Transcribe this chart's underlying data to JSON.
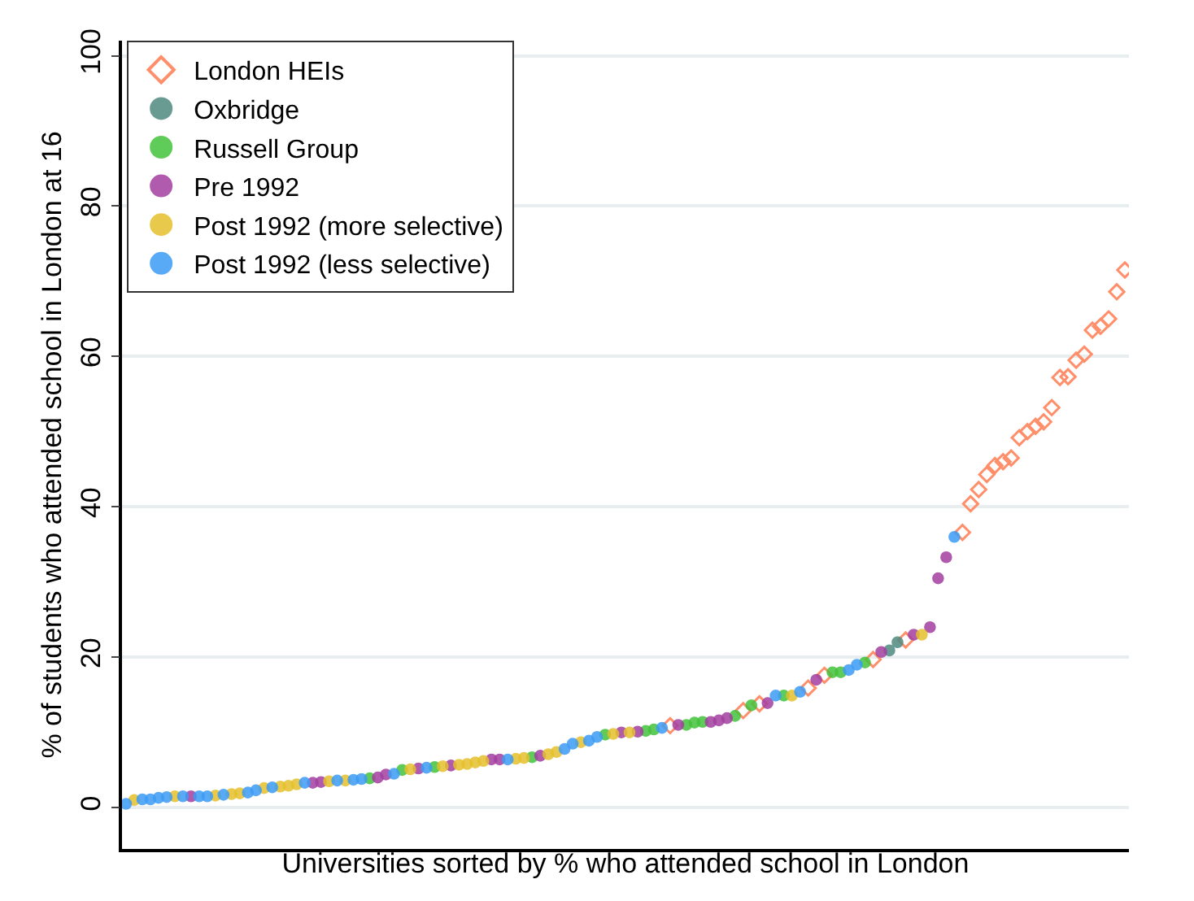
{
  "chart_data": {
    "type": "scatter",
    "xlabel": "Universities sorted by % who attended school in London",
    "ylabel": "% of students who attended school in London at 16",
    "categories": [
      null,
      null,
      null,
      null,
      null,
      null,
      null,
      null,
      null,
      null,
      null,
      null,
      null,
      null,
      null,
      null,
      null,
      null,
      null,
      null,
      null,
      null,
      null,
      null,
      null,
      null,
      null,
      null,
      null,
      null,
      null,
      null,
      null,
      null,
      null,
      null,
      null,
      null,
      null,
      null,
      null,
      null,
      null,
      null,
      null,
      null,
      null,
      null,
      null,
      null,
      null,
      null,
      null,
      null,
      null,
      null,
      null,
      null,
      null,
      null,
      null,
      null,
      null,
      null,
      null,
      null,
      null,
      null,
      null,
      null,
      null,
      null,
      null,
      null,
      null,
      null,
      null,
      null,
      null,
      null,
      null,
      null,
      null,
      null,
      null,
      null,
      null,
      null,
      null,
      null,
      null,
      null,
      null,
      null,
      null,
      null,
      null,
      null,
      null,
      null,
      null,
      null,
      null,
      null,
      null,
      null,
      null,
      null,
      null,
      null,
      null,
      null,
      null,
      null,
      null,
      null,
      null,
      null,
      null,
      null,
      null,
      null,
      null,
      null
    ],
    "series": [
      {
        "name": "London HEIs",
        "color": "#ff8f6b",
        "marker": "diamond",
        "values": [
          null,
          null,
          null,
          null,
          null,
          null,
          null,
          null,
          null,
          null,
          null,
          null,
          null,
          null,
          null,
          null,
          null,
          null,
          null,
          null,
          null,
          null,
          null,
          null,
          null,
          null,
          null,
          null,
          null,
          null,
          null,
          null,
          null,
          null,
          null,
          null,
          null,
          null,
          null,
          null,
          null,
          null,
          null,
          null,
          null,
          null,
          null,
          null,
          null,
          null,
          null,
          null,
          null,
          null,
          null,
          null,
          null,
          null,
          null,
          null,
          null,
          null,
          null,
          null,
          null,
          null,
          null,
          10.9,
          null,
          null,
          null,
          null,
          null,
          null,
          null,
          null,
          12.9,
          null,
          13.8,
          null,
          null,
          null,
          null,
          null,
          15.9,
          null,
          17.6,
          null,
          null,
          null,
          null,
          null,
          19.7,
          null,
          null,
          null,
          22.3,
          null,
          null,
          null,
          null,
          null,
          null,
          36.6,
          40.4,
          42.3,
          44.3,
          45.5,
          46.0,
          46.5,
          49.2,
          50.0,
          50.7,
          51.3,
          53.2,
          57.2,
          57.3,
          59.5,
          60.3,
          63.5,
          64.0,
          65.0,
          68.6,
          71.5
        ]
      },
      {
        "name": "Oxbridge",
        "color": "#4f8a80",
        "marker": "circle",
        "values": [
          null,
          null,
          null,
          null,
          null,
          null,
          null,
          null,
          null,
          null,
          null,
          null,
          null,
          null,
          null,
          null,
          null,
          null,
          null,
          null,
          null,
          null,
          null,
          null,
          null,
          null,
          null,
          null,
          null,
          null,
          null,
          null,
          null,
          null,
          null,
          null,
          null,
          null,
          null,
          null,
          null,
          null,
          null,
          null,
          null,
          null,
          null,
          null,
          null,
          null,
          null,
          null,
          null,
          null,
          null,
          null,
          null,
          null,
          null,
          null,
          null,
          null,
          null,
          null,
          null,
          null,
          null,
          null,
          null,
          null,
          null,
          null,
          null,
          null,
          null,
          null,
          null,
          null,
          null,
          null,
          null,
          null,
          null,
          null,
          null,
          null,
          null,
          null,
          null,
          null,
          null,
          null,
          null,
          null,
          20.9,
          22.0,
          null,
          null,
          null,
          null,
          null,
          null,
          null,
          null,
          null,
          null,
          null,
          null,
          null,
          null,
          null,
          null,
          null,
          null,
          null,
          null,
          null,
          null,
          null,
          null,
          null,
          null,
          null,
          null
        ]
      },
      {
        "name": "Russell Group",
        "color": "#44c23c",
        "marker": "circle",
        "values": [
          null,
          null,
          null,
          null,
          null,
          null,
          null,
          null,
          null,
          null,
          null,
          null,
          null,
          null,
          null,
          null,
          null,
          null,
          null,
          null,
          null,
          null,
          null,
          null,
          null,
          null,
          null,
          null,
          null,
          null,
          3.9,
          null,
          null,
          null,
          5.0,
          null,
          null,
          null,
          5.4,
          null,
          null,
          null,
          null,
          null,
          null,
          null,
          null,
          null,
          null,
          null,
          6.7,
          null,
          null,
          null,
          null,
          null,
          null,
          null,
          null,
          9.7,
          null,
          null,
          null,
          null,
          10.2,
          10.4,
          null,
          null,
          null,
          11.0,
          11.3,
          11.4,
          null,
          null,
          null,
          12.2,
          null,
          13.6,
          null,
          null,
          null,
          14.9,
          null,
          null,
          null,
          null,
          null,
          18.0,
          18.0,
          null,
          null,
          19.3,
          null,
          null,
          null,
          null,
          null,
          null,
          null,
          null,
          null,
          null,
          null,
          null,
          null,
          null,
          null,
          null,
          null,
          null,
          null,
          null,
          null,
          null,
          null,
          null,
          null,
          null,
          null,
          null,
          null,
          null,
          null,
          null
        ]
      },
      {
        "name": "Pre 1992",
        "color": "#a33fa0",
        "marker": "circle",
        "values": [
          null,
          null,
          null,
          null,
          null,
          null,
          null,
          null,
          1.5,
          null,
          null,
          null,
          null,
          null,
          null,
          null,
          null,
          null,
          null,
          null,
          null,
          null,
          null,
          3.3,
          3.4,
          null,
          null,
          null,
          null,
          null,
          null,
          4.0,
          4.4,
          null,
          null,
          null,
          5.2,
          null,
          null,
          null,
          5.6,
          null,
          null,
          null,
          null,
          6.4,
          6.4,
          null,
          null,
          null,
          null,
          6.9,
          null,
          null,
          null,
          null,
          null,
          null,
          null,
          null,
          null,
          10.0,
          null,
          10.1,
          null,
          null,
          null,
          null,
          11.0,
          null,
          null,
          null,
          11.4,
          11.6,
          11.9,
          null,
          null,
          null,
          null,
          13.9,
          null,
          null,
          null,
          null,
          null,
          17.0,
          null,
          null,
          null,
          null,
          null,
          null,
          null,
          20.7,
          null,
          null,
          null,
          23.0,
          null,
          24.0,
          30.5,
          33.3,
          null,
          null,
          null,
          null,
          null,
          null,
          null,
          null,
          null,
          null,
          null,
          null,
          null,
          null,
          null,
          null,
          null,
          null,
          null,
          null,
          null,
          null
        ]
      },
      {
        "name": "Post 1992 (more selective)",
        "color": "#e6c02c",
        "marker": "circle",
        "values": [
          null,
          1.0,
          null,
          null,
          null,
          null,
          1.5,
          null,
          null,
          null,
          null,
          1.6,
          null,
          1.8,
          1.9,
          null,
          null,
          2.6,
          null,
          2.8,
          2.9,
          3.1,
          null,
          null,
          null,
          3.5,
          null,
          3.6,
          null,
          null,
          null,
          null,
          null,
          null,
          null,
          5.1,
          null,
          null,
          null,
          5.5,
          null,
          5.7,
          5.8,
          6.0,
          6.2,
          null,
          null,
          null,
          6.5,
          6.6,
          null,
          null,
          7.1,
          7.4,
          null,
          null,
          8.7,
          null,
          null,
          null,
          9.8,
          null,
          10.0,
          null,
          null,
          null,
          null,
          null,
          null,
          null,
          null,
          null,
          null,
          null,
          null,
          null,
          null,
          null,
          null,
          null,
          null,
          null,
          14.9,
          null,
          null,
          null,
          null,
          null,
          null,
          null,
          null,
          null,
          null,
          null,
          null,
          null,
          null,
          null,
          23.0,
          null,
          null,
          null,
          null,
          null,
          null,
          null,
          null,
          null,
          null,
          null,
          null,
          null,
          null,
          null,
          null,
          null,
          null,
          null,
          null,
          null,
          null,
          null,
          null,
          null
        ]
      },
      {
        "name": "Post 1992 (less selective)",
        "color": "#3d9cf5",
        "marker": "circle",
        "values": [
          0.5,
          null,
          1.1,
          1.1,
          1.3,
          1.4,
          null,
          1.5,
          null,
          1.5,
          1.5,
          null,
          1.7,
          null,
          null,
          2.0,
          2.3,
          null,
          2.7,
          null,
          null,
          null,
          3.3,
          null,
          null,
          null,
          3.6,
          null,
          3.7,
          3.8,
          null,
          null,
          null,
          4.5,
          null,
          null,
          null,
          5.3,
          null,
          null,
          null,
          null,
          null,
          null,
          null,
          null,
          null,
          6.4,
          null,
          null,
          null,
          null,
          null,
          null,
          7.8,
          8.5,
          null,
          8.9,
          9.4,
          null,
          null,
          null,
          null,
          null,
          null,
          null,
          10.6,
          null,
          null,
          null,
          null,
          null,
          null,
          null,
          null,
          null,
          null,
          null,
          null,
          null,
          14.9,
          null,
          null,
          15.4,
          null,
          null,
          null,
          null,
          null,
          18.3,
          19.0,
          null,
          null,
          null,
          null,
          null,
          null,
          null,
          null,
          null,
          null,
          null,
          36.0,
          null,
          null,
          null,
          null,
          null,
          null,
          null,
          null,
          null,
          null,
          null,
          null,
          null,
          null,
          null,
          null,
          null,
          null,
          null,
          null,
          null
        ]
      }
    ],
    "ylim": [
      -5.5,
      102
    ],
    "yticks": [
      0,
      20,
      40,
      60,
      80,
      100
    ],
    "grid": "y",
    "legend": "top left",
    "tick_labels": "y"
  }
}
